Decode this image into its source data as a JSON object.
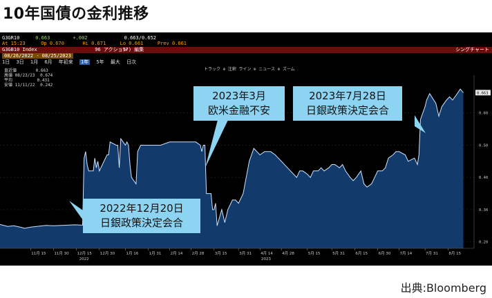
{
  "title": "10年国債の金利推移",
  "source": "出典:Bloomberg",
  "terminal": {
    "ticker": "G3GR10",
    "last": "0.663",
    "change": "+.002",
    "bid_ask": "0.663/0.652",
    "at_time": "At 15:23",
    "open": "Op 0.670",
    "high": "Hi 0.671",
    "low": "Lo 0.661",
    "prev": "Prev 0.661",
    "index_label": "G3GB10 Index",
    "menu_action": "96 アクション",
    "menu_edit": "97) 編集",
    "right_link": "シングチャート",
    "date_range": "08/26/2022 - 08/25/2023",
    "period_buttons": [
      "1日",
      "3日",
      "1月",
      "6月",
      "年初来",
      "1年",
      "5年",
      "最大",
      "日次"
    ],
    "toolbar_text": "トラック  ⊕ 注釈  ライン  ⊕ ニュース  ⊕ ズーム",
    "legend": {
      "last_label": "直近値",
      "last_value": "0.663",
      "high_label": "高値 08/23/23",
      "high_value": "0.674",
      "avg_label": "平均",
      "avg_value": "0.431",
      "low_label": "安値 11/11/22",
      "low_value": "0.242"
    }
  },
  "annotations": [
    {
      "line1": "2023年3月",
      "line2": "欧米金融不安"
    },
    {
      "line1": "2023年7月28日",
      "line2": "日銀政策決定会合"
    },
    {
      "line1": "2022年12月20日",
      "line2": "日銀政策決定会合"
    }
  ],
  "colors": {
    "area_fill": "#123a6b",
    "line": "#cfe4ff",
    "callout": "#8dd4f2",
    "terminal_bg": "#000000"
  },
  "chart_data": {
    "type": "area",
    "ylim": [
      0.18,
      0.7
    ],
    "yticks": [
      "0.20",
      "0.30",
      "0.40",
      "0.50",
      "0.60"
    ],
    "y_tick_values": [
      0.2,
      0.3,
      0.4,
      0.5,
      0.6
    ],
    "xticks": [
      "11月 15",
      "11月 30",
      "12月 15",
      "12月 30",
      "1月 16",
      "1月 31",
      "2月 14",
      "2月 28",
      "3月 15",
      "3月 31",
      "4月 14",
      "4月 28",
      "5月 15",
      "5月 31",
      "6月 15",
      "6月 30",
      "7月 14",
      "7月 31",
      "8月 15"
    ],
    "x_tick_dates": [
      "2022-11-15",
      "2022-11-30",
      "2022-12-15",
      "2022-12-30",
      "2023-01-16",
      "2023-01-31",
      "2023-02-14",
      "2023-02-28",
      "2023-03-15",
      "2023-03-31",
      "2023-04-14",
      "2023-04-28",
      "2023-05-15",
      "2023-05-31",
      "2023-06-15",
      "2023-06-30",
      "2023-07-14",
      "2023-07-31",
      "2023-08-15"
    ],
    "year_labels": [
      {
        "label": "2022",
        "date": "2022-12-20"
      },
      {
        "label": "2023",
        "date": "2023-04-18"
      }
    ],
    "series": [
      {
        "x": [
          "2022-10-26",
          "2022-10-31",
          "2022-11-04",
          "2022-11-09",
          "2022-11-11",
          "2022-11-15",
          "2022-11-21",
          "2022-11-25",
          "2022-11-30",
          "2022-12-05",
          "2022-12-09",
          "2022-12-14",
          "2022-12-19",
          "2022-12-20",
          "2022-12-21",
          "2022-12-22",
          "2022-12-23",
          "2022-12-26",
          "2022-12-27",
          "2022-12-28",
          "2022-12-29",
          "2022-12-30",
          "2023-01-04",
          "2023-01-05",
          "2023-01-06",
          "2023-01-10",
          "2023-01-11",
          "2023-01-12",
          "2023-01-13",
          "2023-01-16",
          "2023-01-17",
          "2023-01-18",
          "2023-01-19",
          "2023-01-20",
          "2023-01-23",
          "2023-01-24",
          "2023-01-26",
          "2023-01-30",
          "2023-02-03",
          "2023-02-08",
          "2023-02-14",
          "2023-02-20",
          "2023-02-27",
          "2023-03-03",
          "2023-03-06",
          "2023-03-07",
          "2023-03-08",
          "2023-03-09",
          "2023-03-10",
          "2023-03-13",
          "2023-03-14",
          "2023-03-15",
          "2023-03-16",
          "2023-03-17",
          "2023-03-20",
          "2023-03-22",
          "2023-03-24",
          "2023-03-27",
          "2023-03-29",
          "2023-03-31",
          "2023-04-03",
          "2023-04-05",
          "2023-04-07",
          "2023-04-10",
          "2023-04-12",
          "2023-04-14",
          "2023-04-17",
          "2023-04-19",
          "2023-04-21",
          "2023-04-24",
          "2023-04-26",
          "2023-04-28",
          "2023-05-02",
          "2023-05-08",
          "2023-05-10",
          "2023-05-12",
          "2023-05-15",
          "2023-05-17",
          "2023-05-19",
          "2023-05-22",
          "2023-05-24",
          "2023-05-26",
          "2023-05-29",
          "2023-05-31",
          "2023-06-02",
          "2023-06-05",
          "2023-06-07",
          "2023-06-09",
          "2023-06-12",
          "2023-06-14",
          "2023-06-16",
          "2023-06-19",
          "2023-06-21",
          "2023-06-23",
          "2023-06-26",
          "2023-06-28",
          "2023-06-30",
          "2023-07-03",
          "2023-07-05",
          "2023-07-07",
          "2023-07-10",
          "2023-07-12",
          "2023-07-14",
          "2023-07-18",
          "2023-07-20",
          "2023-07-24",
          "2023-07-26",
          "2023-07-27",
          "2023-07-28",
          "2023-07-31",
          "2023-08-01",
          "2023-08-03",
          "2023-08-07",
          "2023-08-09",
          "2023-08-11",
          "2023-08-14",
          "2023-08-16",
          "2023-08-18",
          "2023-08-21",
          "2023-08-23",
          "2023-08-25"
        ],
        "values": [
          0.254,
          0.248,
          0.25,
          0.245,
          0.242,
          0.246,
          0.249,
          0.251,
          0.25,
          0.251,
          0.252,
          0.253,
          0.252,
          0.46,
          0.48,
          0.44,
          0.42,
          0.42,
          0.46,
          0.43,
          0.45,
          0.42,
          0.47,
          0.47,
          0.51,
          0.5,
          0.5,
          0.43,
          0.52,
          0.5,
          0.51,
          0.5,
          0.44,
          0.4,
          0.38,
          0.48,
          0.5,
          0.5,
          0.5,
          0.5,
          0.51,
          0.51,
          0.51,
          0.51,
          0.5,
          0.48,
          0.5,
          0.5,
          0.35,
          0.35,
          0.3,
          0.3,
          0.32,
          0.25,
          0.3,
          0.26,
          0.3,
          0.33,
          0.33,
          0.32,
          0.35,
          0.4,
          0.45,
          0.49,
          0.48,
          0.47,
          0.48,
          0.48,
          0.48,
          0.47,
          0.46,
          0.45,
          0.43,
          0.4,
          0.42,
          0.42,
          0.41,
          0.4,
          0.42,
          0.42,
          0.43,
          0.42,
          0.43,
          0.44,
          0.44,
          0.43,
          0.44,
          0.42,
          0.4,
          0.39,
          0.4,
          0.42,
          0.38,
          0.37,
          0.38,
          0.4,
          0.42,
          0.42,
          0.43,
          0.46,
          0.47,
          0.48,
          0.48,
          0.47,
          0.45,
          0.46,
          0.44,
          0.47,
          0.58,
          0.62,
          0.64,
          0.66,
          0.63,
          0.59,
          0.62,
          0.64,
          0.65,
          0.64,
          0.66,
          0.674,
          0.663
        ]
      }
    ]
  }
}
